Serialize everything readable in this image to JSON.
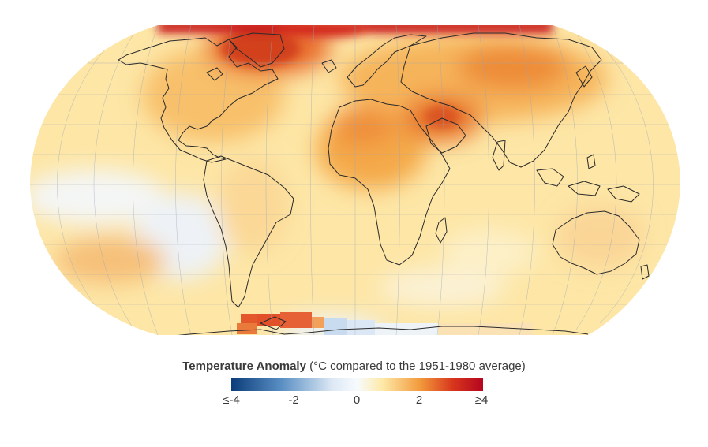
{
  "map": {
    "projection": "Robinson-like world map",
    "graticule": true,
    "coastlines": true,
    "hotspots": [
      "Arctic / Greenland",
      "Siberia",
      "Arabian Peninsula",
      "Sahara",
      "West Antarctica / Antarctic Peninsula"
    ],
    "cool_spots": [
      "Central tropical Pacific",
      "Southern Pacific",
      "East Antarctica coast"
    ]
  },
  "legend": {
    "title_bold": "Temperature Anomaly",
    "title_rest": " (°C compared to the 1951-1980 average)",
    "min": -4,
    "max": 4,
    "ticks": [
      "≤-4",
      "-2",
      "0",
      "2",
      "≥4"
    ],
    "colors": {
      "cold_extreme": "#0b3d7a",
      "cold": "#5a8fc4",
      "neutral": "#f7fbfe",
      "warm_light": "#fde9a8",
      "warm": "#f29a3c",
      "hot": "#d8361c",
      "hot_extreme": "#b40520"
    }
  }
}
